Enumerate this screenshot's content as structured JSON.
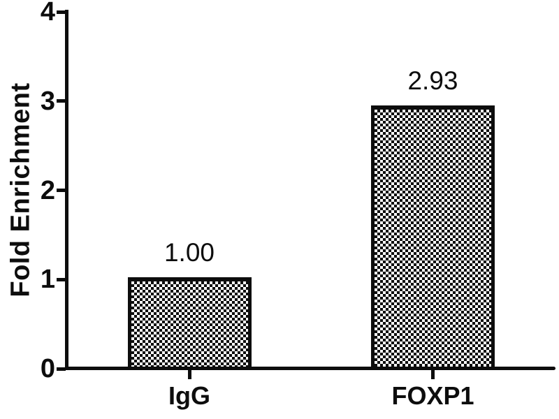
{
  "figure": {
    "background_color": "#ffffff",
    "ink_color": "#0d0d0d",
    "bar_fill_pattern": "checkerboard"
  },
  "chart_data": {
    "type": "bar",
    "title": "",
    "categories": [
      "IgG",
      "FOXP1"
    ],
    "values": [
      1.0,
      2.93
    ],
    "bar_labels": [
      "1.00",
      "2.93"
    ],
    "xlabel": "",
    "ylabel": "Fold Enrichment",
    "ylim": [
      0,
      4
    ],
    "yticks": [
      0,
      1,
      2,
      3,
      4
    ],
    "grid": false,
    "legend": "none"
  }
}
